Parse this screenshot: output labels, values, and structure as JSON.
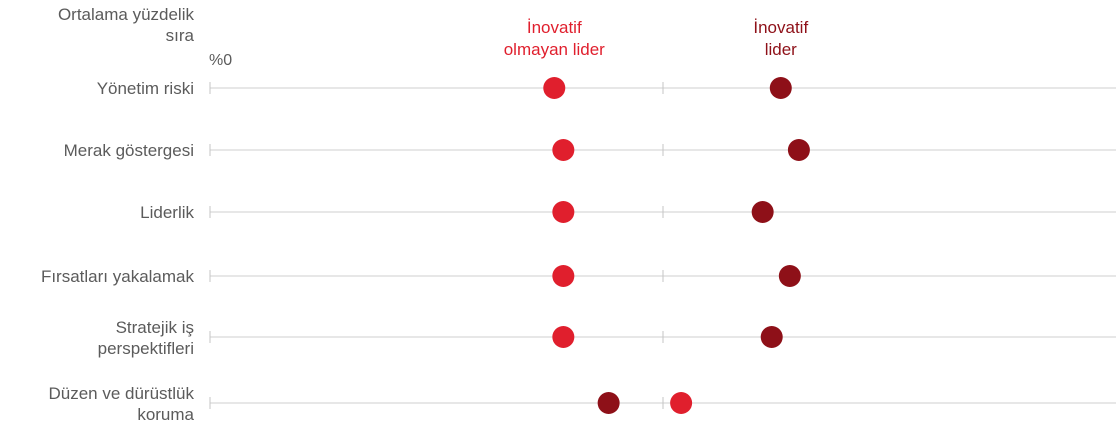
{
  "chart_data": {
    "type": "scatter",
    "title": "",
    "ylabel": [
      "Ortalama yüzdelik",
      "sıra"
    ],
    "x_tick_label": "%0",
    "xlim": [
      0,
      100
    ],
    "legend_placement": "top",
    "series": [
      {
        "name": [
          "İnovatif",
          "olmayan lider"
        ],
        "color": "#e01f2d"
      },
      {
        "name": [
          "İnovatif",
          "lider"
        ],
        "color": "#8e1018"
      }
    ],
    "categories": [
      [
        "Yönetim riski"
      ],
      [
        "Merak göstergesi"
      ],
      [
        "Liderlik"
      ],
      [
        "Fırsatları yakalamak"
      ],
      [
        "Stratejik iş",
        "perspektifleri"
      ],
      [
        "Düzen ve dürüstlük",
        "koruma"
      ]
    ],
    "values": [
      [
        38,
        63
      ],
      [
        39,
        65
      ],
      [
        39,
        61
      ],
      [
        39,
        64
      ],
      [
        39,
        62
      ],
      [
        52,
        44
      ]
    ]
  }
}
